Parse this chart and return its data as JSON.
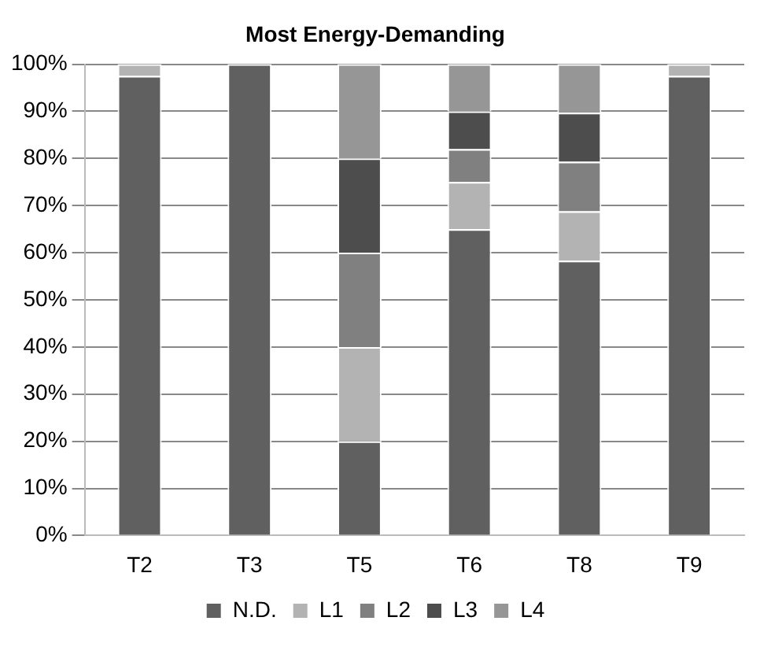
{
  "chart_data": {
    "type": "bar",
    "title": "Most Energy-Demanding",
    "categories": [
      "T2",
      "T3",
      "T5",
      "T6",
      "T8",
      "T9"
    ],
    "stacked": true,
    "series": [
      {
        "name": "N.D.",
        "color": "#606060",
        "values": [
          97.5,
          100,
          20,
          65,
          58.3,
          97.5
        ]
      },
      {
        "name": "L1",
        "color": "#b3b3b3",
        "values": [
          2.5,
          0,
          20,
          10,
          10.5,
          2.5
        ]
      },
      {
        "name": "L2",
        "color": "#808080",
        "values": [
          0,
          0,
          20,
          7,
          10.5,
          0
        ]
      },
      {
        "name": "L3",
        "color": "#4d4d4d",
        "values": [
          0,
          0,
          20,
          8,
          10.4,
          0
        ]
      },
      {
        "name": "L4",
        "color": "#969696",
        "values": [
          0,
          0,
          20,
          10,
          10.3,
          0
        ]
      }
    ],
    "ylim": [
      0,
      100
    ],
    "yticks": [
      {
        "value": 0,
        "label": "0%"
      },
      {
        "value": 10,
        "label": "10%"
      },
      {
        "value": 20,
        "label": "20%"
      },
      {
        "value": 30,
        "label": "30%"
      },
      {
        "value": 40,
        "label": "40%"
      },
      {
        "value": 50,
        "label": "50%"
      },
      {
        "value": 60,
        "label": "60%"
      },
      {
        "value": 70,
        "label": "70%"
      },
      {
        "value": 80,
        "label": "80%"
      },
      {
        "value": 90,
        "label": "90%"
      },
      {
        "value": 100,
        "label": "100%"
      }
    ],
    "grid": "y",
    "legend": "bottom"
  }
}
